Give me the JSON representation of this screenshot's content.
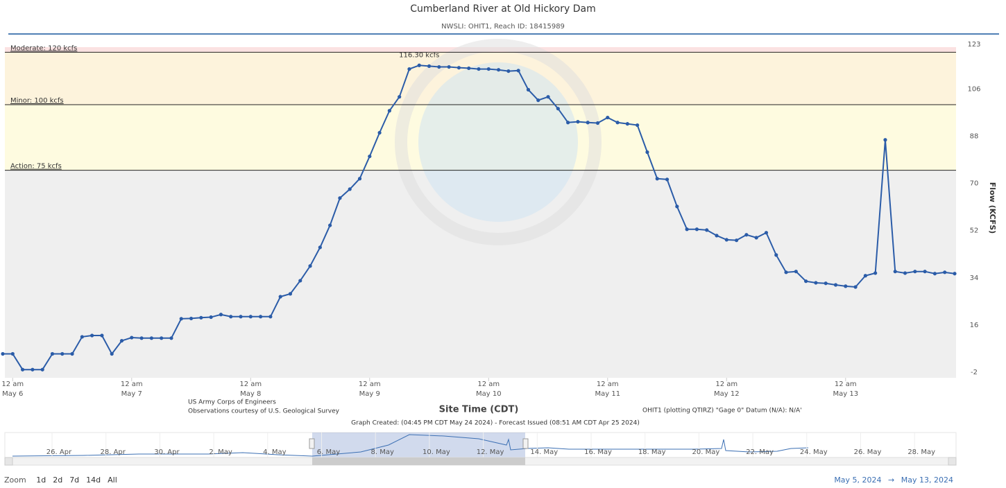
{
  "chart_data": {
    "type": "line",
    "title": "Cumberland River at Old Hickory Dam",
    "subtitle": "NWSLI: OHIT1, Reach ID: 18415989",
    "x_label": "Site Time (CDT)",
    "y_label": "Flow (KCFS)",
    "x": [
      "2024-05-05T22:00",
      "2024-05-06T00:00",
      "2024-05-06T02:00",
      "2024-05-06T04:00",
      "2024-05-06T06:00",
      "2024-05-06T08:00",
      "2024-05-06T10:00",
      "2024-05-06T12:00",
      "2024-05-06T14:00",
      "2024-05-06T16:00",
      "2024-05-06T18:00",
      "2024-05-06T20:00",
      "2024-05-06T22:00",
      "2024-05-07T00:00",
      "2024-05-07T02:00",
      "2024-05-07T04:00",
      "2024-05-07T06:00",
      "2024-05-07T08:00",
      "2024-05-07T10:00",
      "2024-05-07T12:00",
      "2024-05-07T14:00",
      "2024-05-07T16:00",
      "2024-05-07T18:00",
      "2024-05-07T20:00",
      "2024-05-07T22:00",
      "2024-05-08T00:00",
      "2024-05-08T02:00",
      "2024-05-08T04:00",
      "2024-05-08T06:00",
      "2024-05-08T08:00",
      "2024-05-08T10:00",
      "2024-05-08T12:00",
      "2024-05-08T14:00",
      "2024-05-08T16:00",
      "2024-05-08T18:00",
      "2024-05-08T20:00",
      "2024-05-08T22:00",
      "2024-05-09T00:00",
      "2024-05-09T02:00",
      "2024-05-09T04:00",
      "2024-05-09T06:00",
      "2024-05-09T08:00",
      "2024-05-09T10:00",
      "2024-05-09T12:00",
      "2024-05-09T14:00",
      "2024-05-09T16:00",
      "2024-05-09T18:00",
      "2024-05-09T20:00",
      "2024-05-09T22:00",
      "2024-05-10T00:00",
      "2024-05-10T02:00",
      "2024-05-10T04:00",
      "2024-05-10T06:00",
      "2024-05-10T08:00",
      "2024-05-10T10:00",
      "2024-05-10T12:00",
      "2024-05-10T14:00",
      "2024-05-10T16:00",
      "2024-05-10T18:00",
      "2024-05-10T20:00",
      "2024-05-10T22:00",
      "2024-05-11T00:00",
      "2024-05-11T02:00",
      "2024-05-11T04:00",
      "2024-05-11T06:00",
      "2024-05-11T08:00",
      "2024-05-11T10:00",
      "2024-05-11T12:00",
      "2024-05-11T14:00",
      "2024-05-11T16:00",
      "2024-05-11T18:00",
      "2024-05-11T20:00",
      "2024-05-11T22:00",
      "2024-05-12T00:00",
      "2024-05-12T02:00",
      "2024-05-12T04:00",
      "2024-05-12T06:00",
      "2024-05-12T08:00",
      "2024-05-12T10:00",
      "2024-05-12T12:00",
      "2024-05-12T14:00",
      "2024-05-12T16:00",
      "2024-05-12T18:00",
      "2024-05-12T20:00",
      "2024-05-12T22:00",
      "2024-05-13T00:00",
      "2024-05-13T02:00",
      "2024-05-13T04:00",
      "2024-05-13T06:00",
      "2024-05-13T08:00",
      "2024-05-13T10:00",
      "2024-05-13T12:00",
      "2024-05-13T14:00",
      "2024-05-13T16:00",
      "2024-05-13T18:00",
      "2024-05-13T20:00",
      "2024-05-13T22:00"
    ],
    "series": [
      {
        "color": "#2b5ca8",
        "values": [
          5,
          5,
          -1,
          -1,
          -1,
          5,
          5,
          5,
          11.5,
          12,
          12,
          5,
          10,
          11.2,
          11,
          11,
          11,
          11,
          18.4,
          18.5,
          18.8,
          19,
          20,
          19.2,
          19.2,
          19.2,
          19.2,
          19.2,
          26.8,
          27.9,
          32.9,
          38.5,
          45.6,
          54,
          64.4,
          67.8,
          71.8,
          80.3,
          89.3,
          97.7,
          103,
          113.6,
          115,
          114.7,
          114.4,
          114.4,
          114.1,
          113.9,
          113.6,
          113.6,
          113.3,
          112.8,
          113,
          105.7,
          101.7,
          103,
          98.5,
          93.2,
          93.5,
          93.2,
          93,
          95.1,
          93.2,
          92.7,
          92.2,
          81.9,
          71.8,
          71.5,
          61.2,
          52.5,
          52.5,
          52.2,
          50.1,
          48.5,
          48.3,
          50.4,
          49.3,
          51.2,
          42.7,
          36.1,
          36.4,
          32.7,
          32.1,
          31.9,
          31.3,
          30.8,
          30.5,
          34.8,
          35.8,
          86.6,
          36.4,
          35.8,
          36.4,
          36.4,
          35.6,
          36.1,
          35.6
        ]
      }
    ],
    "xlim": [
      "2024-05-05T22:00",
      "2024-05-13T22:00"
    ],
    "xticks": [
      {
        "value": "2024-05-06T00:00",
        "label": "12 am\nMay 6"
      },
      {
        "value": "2024-05-07T00:00",
        "label": "12 am\nMay 7"
      },
      {
        "value": "2024-05-08T00:00",
        "label": "12 am\nMay 8"
      },
      {
        "value": "2024-05-09T00:00",
        "label": "12 am\nMay 9"
      },
      {
        "value": "2024-05-10T00:00",
        "label": "12 am\nMay 10"
      },
      {
        "value": "2024-05-11T00:00",
        "label": "12 am\nMay 11"
      },
      {
        "value": "2024-05-12T00:00",
        "label": "12 am\nMay 12"
      },
      {
        "value": "2024-05-13T00:00",
        "label": "12 am\nMay 13"
      }
    ],
    "ylim": [
      -2,
      123
    ],
    "yticks": [
      -2,
      16,
      34,
      52,
      70,
      88,
      106,
      123
    ],
    "plot_background": "#efefef",
    "thresholds": [
      {
        "label": "Action: 75 kcfs",
        "value": 75,
        "color": "#fefbe0"
      },
      {
        "label": "Minor: 100 kcfs",
        "value": 100,
        "color": "#fdf3dc"
      },
      {
        "label": "Moderate: 120 kcfs",
        "value": 120,
        "color": "#fbe2e2"
      }
    ],
    "annotations": [
      {
        "text": "116.30 kcfs",
        "value": 116.3,
        "x": "2024-05-09T10:00"
      }
    ],
    "credits": [
      "US Army Corps of Engineers",
      "Observations courtesy of U.S. Geological Survey"
    ],
    "datum_note": "OHIT1 (plotting QTIRZ) \"Gage 0\" Datum (N/A): N/A'",
    "created_note": "Graph Created: (04:45 PM CDT May 24 2024) - Forecast Issued (08:51 AM CDT Apr 25 2024)"
  },
  "navigator": {
    "labels": [
      "26. Apr",
      "28. Apr",
      "30. Apr",
      "2. May",
      "4. May",
      "6. May",
      "8. May",
      "10. May",
      "12. May",
      "14. May",
      "16. May",
      "18. May",
      "20. May",
      "22. May",
      "24. May",
      "26. May",
      "28. May"
    ]
  },
  "zoom": {
    "label": "Zoom",
    "buttons": [
      "1d",
      "2d",
      "7d",
      "14d",
      "All"
    ]
  },
  "range": {
    "from": "May 5, 2024",
    "separator": "→",
    "to": "May 13, 2024"
  }
}
